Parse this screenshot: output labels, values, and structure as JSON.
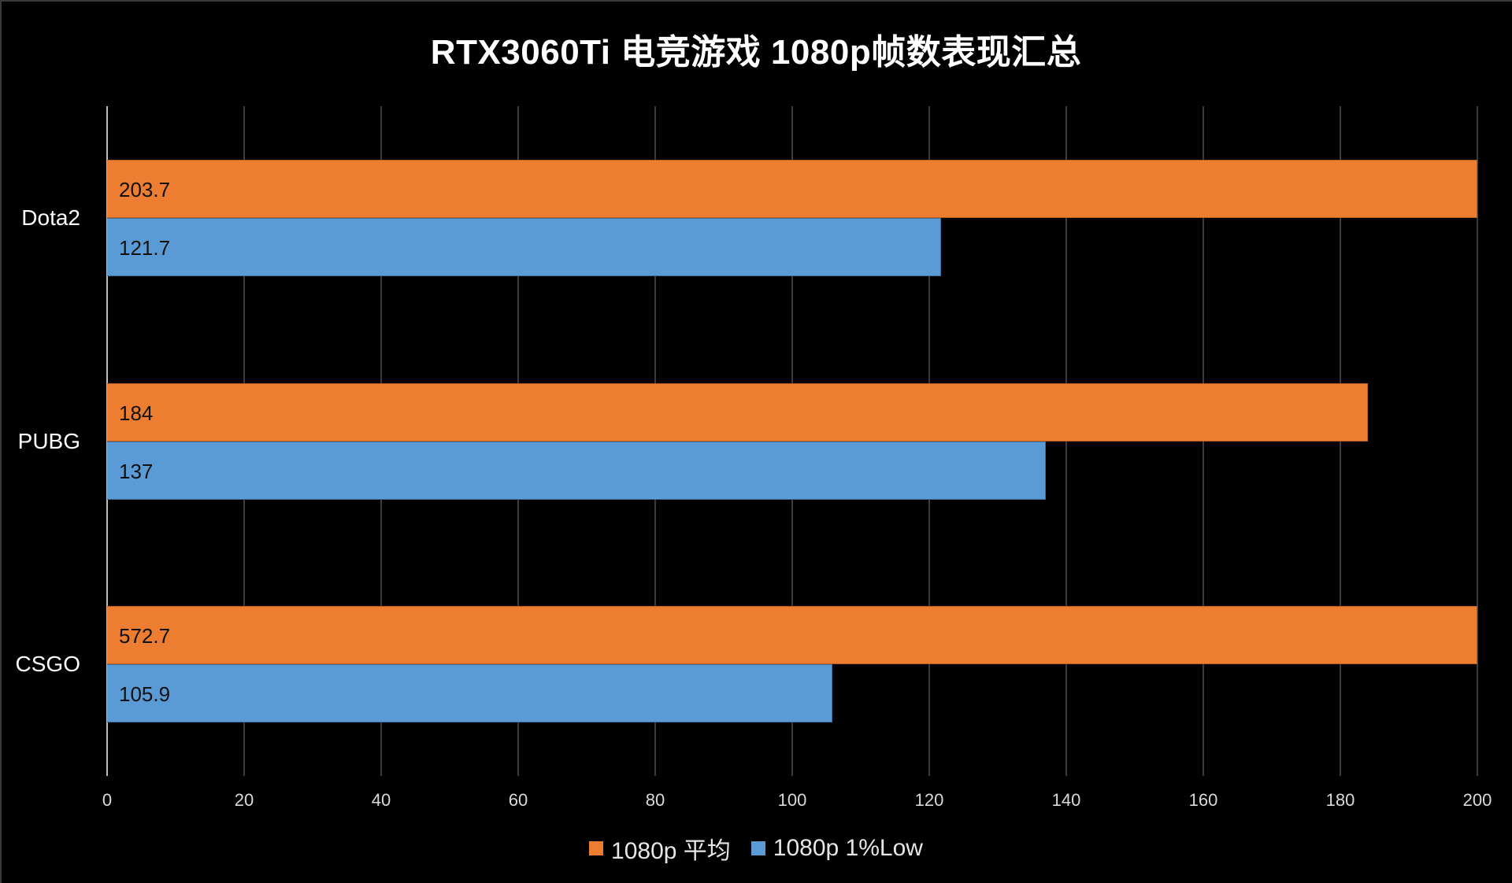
{
  "title": "RTX3060Ti 电竞游戏 1080p帧数表现汇总",
  "chart_data": {
    "type": "bar",
    "orientation": "horizontal",
    "title": "RTX3060Ti 电竞游戏 1080p帧数表现汇总",
    "categories": [
      "Dota2",
      "PUBG",
      "CSGO"
    ],
    "series": [
      {
        "name": "1080p 平均",
        "color": "#ED7D31",
        "values": [
          203.7,
          184,
          572.7
        ],
        "labels": [
          "203.7",
          "184",
          "572.7"
        ]
      },
      {
        "name": "1080p 1%Low",
        "color": "#5B9BD5",
        "values": [
          121.7,
          137,
          105.9
        ],
        "labels": [
          "121.7",
          "137",
          "105.9"
        ]
      }
    ],
    "xlabel": "",
    "ylabel": "",
    "xlim": [
      0,
      200
    ],
    "xticks": [
      "0",
      "20",
      "40",
      "60",
      "80",
      "100",
      "120",
      "140",
      "160",
      "180",
      "200"
    ],
    "grid": true,
    "legend_position": "bottom",
    "background": "#000000"
  }
}
